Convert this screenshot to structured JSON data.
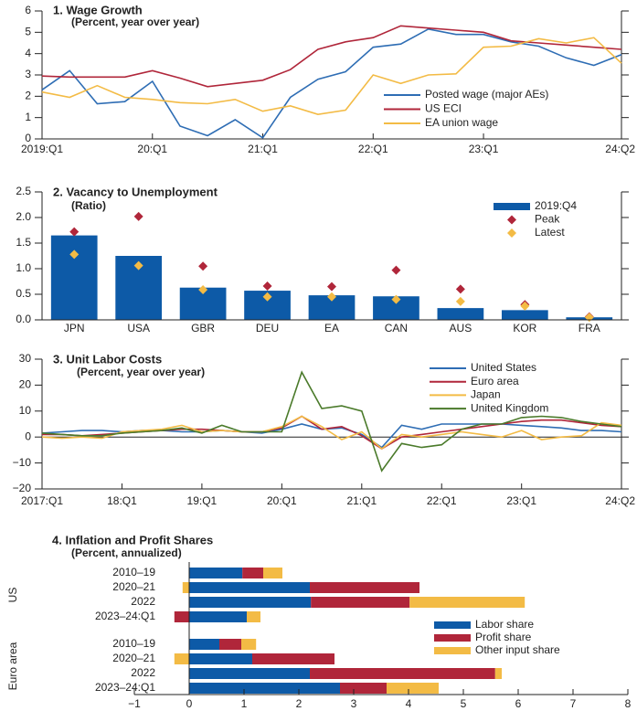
{
  "chart_data": [
    {
      "type": "line",
      "title": "1. Wage Growth",
      "subtitle": "(Percent, year over year)",
      "x": [
        2019,
        2019.25,
        2019.5,
        2019.75,
        2020,
        2020.25,
        2020.5,
        2020.75,
        2021,
        2021.25,
        2021.5,
        2021.75,
        2022,
        2022.25,
        2022.5,
        2022.75,
        2023,
        2023.25,
        2023.5,
        2023.75,
        2024,
        2024.25
      ],
      "xlim": [
        2019,
        2024.25
      ],
      "xticks": [
        {
          "value": 2019,
          "label": "2019:Q1"
        },
        {
          "value": 2020,
          "label": "20:Q1"
        },
        {
          "value": 2021,
          "label": "21:Q1"
        },
        {
          "value": 2022,
          "label": "22:Q1"
        },
        {
          "value": 2023,
          "label": "23:Q1"
        },
        {
          "value": 2024.25,
          "label": "24:Q2"
        }
      ],
      "ylim": [
        0,
        6
      ],
      "yticks": [
        0,
        1,
        2,
        3,
        4,
        5,
        6
      ],
      "series": [
        {
          "name": "Posted wage (major AEs)",
          "color": "#2e6db4",
          "values": [
            2.3,
            3.2,
            1.65,
            1.75,
            2.7,
            0.6,
            0.15,
            0.9,
            0.05,
            1.95,
            2.8,
            3.15,
            4.3,
            4.45,
            5.15,
            4.9,
            4.9,
            4.55,
            4.35,
            3.8,
            3.45,
            3.95
          ]
        },
        {
          "name": "US ECI",
          "color": "#b0263a",
          "values": [
            2.95,
            2.9,
            2.9,
            2.9,
            3.2,
            2.85,
            2.45,
            2.6,
            2.75,
            3.25,
            4.2,
            4.55,
            4.75,
            5.3,
            5.2,
            5.1,
            5.0,
            4.6,
            4.5,
            4.4,
            4.3,
            4.2
          ]
        },
        {
          "name": "EA union wage",
          "color": "#f3bb45",
          "values": [
            2.2,
            1.95,
            2.5,
            1.95,
            1.85,
            1.7,
            1.65,
            1.85,
            1.3,
            1.55,
            1.15,
            1.35,
            3.0,
            2.6,
            3.0,
            3.05,
            4.3,
            4.35,
            4.7,
            4.5,
            4.75,
            3.55
          ]
        }
      ]
    },
    {
      "type": "bar",
      "title": "2. Vacancy to Unemployment",
      "subtitle": "(Ratio)",
      "categories": [
        "JPN",
        "USA",
        "GBR",
        "DEU",
        "EA",
        "CAN",
        "AUS",
        "KOR",
        "FRA"
      ],
      "ylim": [
        0,
        2.5
      ],
      "yticks": [
        {
          "value": 0,
          "label": "0.0"
        },
        0.5,
        {
          "value": 1,
          "label": "1.0"
        },
        1.5,
        {
          "value": 2,
          "label": "2.0"
        },
        2.5
      ],
      "series": [
        {
          "name": "2019:Q4",
          "color": "#0d5aa7",
          "mark": "bar",
          "values": [
            1.65,
            1.25,
            0.63,
            0.57,
            0.48,
            0.46,
            0.23,
            0.19,
            0.05
          ]
        },
        {
          "name": "Peak",
          "color": "#b0263a",
          "mark": "diamond",
          "values": [
            1.72,
            2.02,
            1.05,
            0.66,
            0.65,
            0.97,
            0.6,
            0.3,
            0.06
          ]
        },
        {
          "name": "Latest",
          "color": "#f3bb45",
          "mark": "diamond",
          "values": [
            1.28,
            1.06,
            0.59,
            0.45,
            0.45,
            0.4,
            0.36,
            0.27,
            0.05
          ]
        }
      ]
    },
    {
      "type": "line",
      "title": "3. Unit Labor Costs",
      "subtitle": "(Percent, year over year)",
      "x": [
        2017,
        2017.25,
        2017.5,
        2017.75,
        2018,
        2018.25,
        2018.5,
        2018.75,
        2019,
        2019.25,
        2019.5,
        2019.75,
        2020,
        2020.25,
        2020.5,
        2020.75,
        2021,
        2021.25,
        2021.5,
        2021.75,
        2022,
        2022.25,
        2022.5,
        2022.75,
        2023,
        2023.25,
        2023.5,
        2023.75,
        2024,
        2024.25
      ],
      "xlim": [
        2017,
        2024.25
      ],
      "xticks": [
        {
          "value": 2017,
          "label": "2017:Q1"
        },
        {
          "value": 2018,
          "label": "18:Q1"
        },
        {
          "value": 2019,
          "label": "19:Q1"
        },
        {
          "value": 2020,
          "label": "20:Q1"
        },
        {
          "value": 2021,
          "label": "21:Q1"
        },
        {
          "value": 2022,
          "label": "22:Q1"
        },
        {
          "value": 2023,
          "label": "23:Q1"
        },
        {
          "value": 2024.25,
          "label": "24:Q2"
        }
      ],
      "ylim": [
        -20,
        30
      ],
      "yticks": [
        {
          "value": -20,
          "label": "−20"
        },
        {
          "value": -10,
          "label": "−10"
        },
        0,
        10,
        20,
        30
      ],
      "series": [
        {
          "name": "United States",
          "color": "#2e6db4",
          "values": [
            1.5,
            2,
            2.5,
            2.5,
            2,
            2.5,
            2.5,
            2,
            2,
            2.5,
            2,
            1.5,
            3,
            5,
            3,
            3.5,
            1,
            -4,
            4.5,
            3,
            5,
            5,
            5,
            5,
            4.5,
            4,
            3.5,
            2.5,
            2.5,
            2
          ]
        },
        {
          "name": "Euro area",
          "color": "#b0263a",
          "values": [
            1,
            1,
            0.5,
            1,
            1.5,
            2,
            2.5,
            3,
            3,
            2.5,
            2,
            2,
            3.5,
            8,
            3,
            4,
            0.5,
            -4.5,
            0,
            1,
            2,
            3,
            4,
            5,
            6,
            6.5,
            6.5,
            5.5,
            4.5,
            4
          ]
        },
        {
          "name": "Japan",
          "color": "#f3bb45",
          "values": [
            0,
            -0.5,
            0,
            -0.5,
            2,
            2.5,
            3,
            4.5,
            2,
            2.5,
            2,
            2,
            4,
            8,
            4,
            -1,
            2,
            -4.5,
            1,
            0,
            1,
            2,
            1,
            0,
            2.5,
            -1,
            0,
            0.5,
            5.5,
            4.5
          ]
        },
        {
          "name": "United Kingdom",
          "color": "#4a7a2a",
          "values": [
            1.5,
            1,
            0.5,
            0.5,
            1.5,
            2,
            2.5,
            3.5,
            1.5,
            4.5,
            2,
            2,
            2,
            25,
            11,
            12,
            10,
            -13,
            -2.5,
            -4,
            -3,
            3,
            5,
            5,
            7.5,
            8,
            7.5,
            6,
            5,
            4
          ]
        }
      ]
    },
    {
      "type": "hbar",
      "stacked": true,
      "title": "4. Inflation and Profit Shares",
      "subtitle": "(Percent, annualized)",
      "categories": [
        "2010–19",
        "2020–21",
        "2022",
        "2023–24:Q1",
        "2010–19",
        "2020–21",
        "2022",
        "2023–24:Q1"
      ],
      "groups": [
        {
          "name": "US",
          "size": 4
        },
        {
          "name": "Euro area",
          "size": 4
        }
      ],
      "xlim": [
        -1,
        8
      ],
      "xticks": [
        {
          "value": -1,
          "label": "−1"
        },
        0,
        1,
        2,
        3,
        4,
        5,
        6,
        7,
        8
      ],
      "series": [
        {
          "name": "Labor share",
          "color": "#0d5aa7",
          "values": [
            0.97,
            2.2,
            2.22,
            1.05,
            0.55,
            1.15,
            2.2,
            2.75
          ]
        },
        {
          "name": "Profit share",
          "color": "#b0263a",
          "values": [
            0.38,
            2.0,
            1.8,
            -0.27,
            0.4,
            1.5,
            3.38,
            0.85
          ]
        },
        {
          "name": "Other input share",
          "color": "#f3bb45",
          "values": [
            0.35,
            -0.12,
            2.1,
            0.25,
            0.27,
            -0.27,
            0.12,
            0.95
          ]
        }
      ]
    }
  ]
}
